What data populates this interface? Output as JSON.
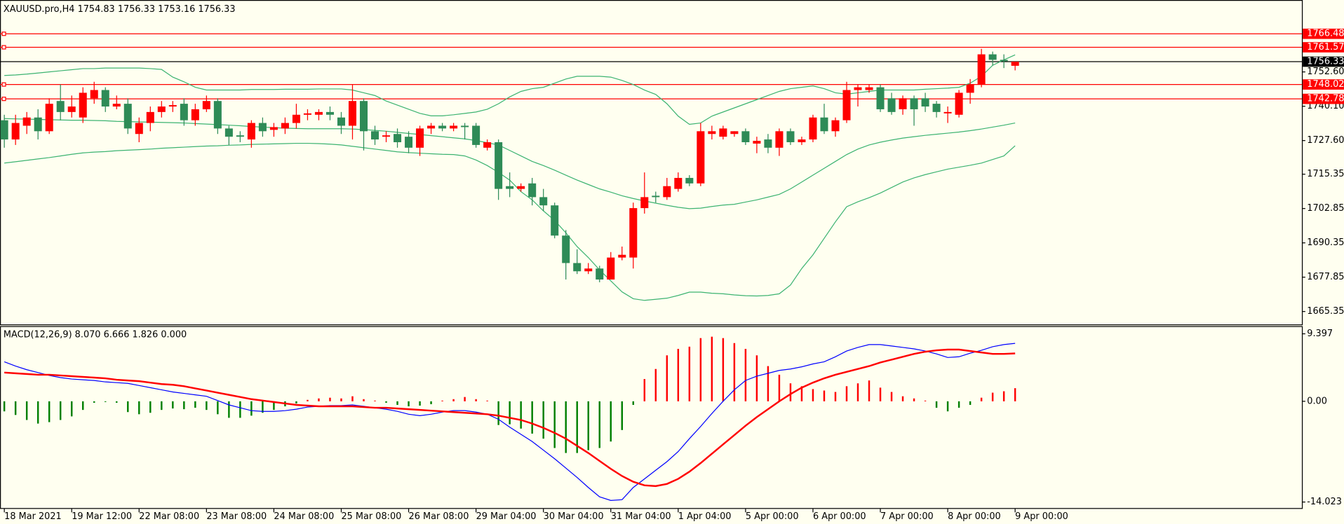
{
  "chart_data": [
    {
      "type": "candlestick",
      "title": "XAUUSD.pro,H4  1754.83 1756.33 1753.16 1756.33",
      "categories": [
        "18 Mar 2021",
        null,
        null,
        null,
        null,
        null,
        "19 Mar 12:00",
        null,
        null,
        null,
        null,
        null,
        "22 Mar 08:00",
        null,
        null,
        null,
        null,
        null,
        "23 Mar 08:00",
        null,
        null,
        null,
        null,
        null,
        "24 Mar 08:00",
        null,
        null,
        null,
        null,
        null,
        "25 Mar 08:00",
        null,
        null,
        null,
        null,
        null,
        "26 Mar 08:00",
        null,
        null,
        null,
        null,
        null,
        "29 Mar 04:00",
        null,
        null,
        null,
        null,
        null,
        "30 Mar 04:00",
        null,
        null,
        null,
        null,
        null,
        "31 Mar 04:00",
        null,
        null,
        null,
        null,
        null,
        "1 Apr 04:00",
        null,
        null,
        null,
        null,
        null,
        "5 Apr 00:00",
        null,
        null,
        null,
        null,
        null,
        "6 Apr 00:00",
        null,
        null,
        null,
        null,
        null,
        "7 Apr 00:00",
        null,
        null,
        null,
        null,
        null,
        "8 Apr 00:00",
        null,
        null,
        null,
        null,
        null,
        "9 Apr 00:00"
      ],
      "open": [
        1735,
        1728,
        1733,
        1736,
        1731,
        1742,
        1738,
        1736,
        1743,
        1746,
        1740,
        1741,
        1730,
        1734,
        1738,
        1740,
        1741,
        1735,
        1739,
        1742,
        1732,
        1729.5,
        1728,
        1734,
        1731.5,
        1732,
        1734,
        1737,
        1737,
        1738,
        1736,
        1733,
        1742,
        1731,
        1729,
        1730,
        1729,
        1725,
        1732,
        1733,
        1732,
        1733,
        1733,
        1725,
        1727,
        1711,
        1710,
        1712,
        1707,
        1704,
        1693,
        1683,
        1680,
        1681,
        1677,
        1685,
        1685,
        1703,
        1707.5,
        1707,
        1710,
        1714,
        1712,
        1730,
        1729,
        1730,
        1731,
        1726.5,
        1728,
        1725,
        1731,
        1727,
        1728,
        1736,
        1731,
        1735,
        1746,
        1746,
        1747,
        1743,
        1739,
        1743,
        1743,
        1741,
        1737.5,
        1737,
        1745,
        1748,
        1759,
        1757,
        1754.83
      ],
      "high": [
        1737,
        1737,
        1738,
        1739,
        1743,
        1748,
        1744,
        1747,
        1749,
        1747,
        1744,
        1743,
        1736,
        1740,
        1742,
        1742,
        1743,
        1741,
        1744,
        1743,
        1733,
        1731,
        1735,
        1736,
        1734,
        1736,
        1741,
        1739,
        1739,
        1740,
        1738,
        1748,
        1743,
        1733,
        1731,
        1732,
        1731,
        1733,
        1734,
        1734,
        1734,
        1734,
        1734,
        1728,
        1728,
        1716,
        1712,
        1714,
        1710,
        1705,
        1695,
        1688,
        1683,
        1682,
        1687,
        1689,
        1705,
        1716,
        1709,
        1714,
        1716,
        1715,
        1734,
        1733,
        1733,
        1731,
        1732,
        1729,
        1730,
        1732,
        1732,
        1729,
        1737,
        1741,
        1736,
        1749,
        1748,
        1748,
        1748,
        1745,
        1744,
        1744,
        1745,
        1742,
        1740,
        1746,
        1750,
        1761,
        1760,
        1759,
        1756.33
      ],
      "low": [
        1725,
        1726,
        1730,
        1728,
        1730,
        1735,
        1736,
        1734,
        1741,
        1738,
        1739,
        1730,
        1727,
        1731,
        1736,
        1738,
        1733,
        1733,
        1738,
        1730,
        1726,
        1727,
        1725,
        1729,
        1729,
        1730,
        1732,
        1735,
        1735,
        1735,
        1730,
        1728,
        1724,
        1726,
        1727,
        1725,
        1723,
        1722,
        1730,
        1731,
        1731,
        1728,
        1725,
        1724,
        1706,
        1707,
        1709,
        1704,
        1702,
        1692,
        1677,
        1679,
        1679,
        1676,
        1677,
        1684,
        1681,
        1701,
        1705,
        1706,
        1709,
        1711,
        1711,
        1728,
        1728,
        1729,
        1726,
        1723,
        1723,
        1722,
        1726,
        1726,
        1727,
        1730,
        1729,
        1734,
        1740,
        1745,
        1738,
        1737,
        1737,
        1733,
        1738,
        1736,
        1734,
        1736,
        1741,
        1747,
        1755,
        1754,
        1753.16
      ],
      "close": [
        1728,
        1734,
        1736,
        1731,
        1741,
        1738,
        1740,
        1745,
        1746,
        1740,
        1741,
        1732,
        1734,
        1738,
        1740,
        1740.5,
        1735,
        1739,
        1742,
        1732,
        1729,
        1729,
        1734,
        1731,
        1732.5,
        1734,
        1737,
        1737.5,
        1738,
        1737,
        1733,
        1742,
        1731,
        1728,
        1729.5,
        1727,
        1725,
        1732,
        1733,
        1732,
        1733,
        1732.5,
        1726,
        1727,
        1710,
        1710,
        1711,
        1707,
        1704,
        1693,
        1683,
        1680,
        1681,
        1677,
        1685,
        1686,
        1703,
        1707,
        1707,
        1711,
        1714,
        1712,
        1731,
        1731,
        1732,
        1731,
        1727,
        1727.5,
        1725,
        1731,
        1727,
        1728,
        1736,
        1731,
        1735,
        1746,
        1747,
        1747,
        1739,
        1738,
        1743,
        1739,
        1740,
        1738,
        1738,
        1745,
        1748,
        1759,
        1757,
        1756.5,
        1756.33
      ],
      "up_color": "#ff0000",
      "down_color": "#2e8b57",
      "series": [
        {
          "color": "#3cb371",
          "values": [
            1751.3,
            1751.5,
            1751.8,
            1752.2,
            1752.6,
            1753,
            1753.4,
            1753.8,
            1753.8,
            1754,
            1754,
            1754,
            1754,
            1753.8,
            1753.5,
            1750.7,
            1749,
            1747,
            1746,
            1746,
            1746,
            1746,
            1746.2,
            1746.2,
            1746.2,
            1746.3,
            1746.3,
            1746.3,
            1746.4,
            1746.4,
            1746.4,
            1746,
            1745,
            1744,
            1742,
            1740.5,
            1739,
            1737.5,
            1736.6,
            1736.6,
            1737,
            1737.5,
            1738,
            1739,
            1741,
            1743.5,
            1745.5,
            1746.5,
            1747,
            1748.5,
            1750,
            1751,
            1751,
            1751,
            1750.7,
            1749.5,
            1748,
            1746,
            1744.4,
            1741,
            1736.5,
            1733.5,
            1734,
            1736.5,
            1738,
            1739.5,
            1741,
            1742.5,
            1744,
            1745.5,
            1746.5,
            1747,
            1747.5,
            1746.5,
            1745,
            1744.5,
            1745,
            1745.5,
            1746,
            1746,
            1746,
            1746,
            1746.3,
            1746.5,
            1746.7,
            1747,
            1748.5,
            1751,
            1755,
            1757,
            1758.8
          ]
        },
        {
          "color": "#3cb371",
          "values": [
            1735.6,
            1735.5,
            1735.4,
            1735.3,
            1735.2,
            1735.1,
            1735,
            1735,
            1734.9,
            1734.8,
            1734.6,
            1734.5,
            1734.4,
            1734.3,
            1734.2,
            1734.1,
            1734,
            1733.8,
            1733.6,
            1733.4,
            1733.2,
            1733,
            1732.7,
            1732.5,
            1732.3,
            1732.1,
            1732,
            1731.9,
            1731.9,
            1731.9,
            1731.9,
            1731.8,
            1731.6,
            1731.3,
            1731,
            1730.6,
            1730.2,
            1729.8,
            1729.4,
            1729,
            1728.6,
            1728.2,
            1727.6,
            1726.8,
            1726,
            1724,
            1722,
            1720,
            1718.5,
            1716.8,
            1715,
            1713.2,
            1711.6,
            1710,
            1708.8,
            1707.5,
            1706.5,
            1705.6,
            1704.8,
            1704,
            1703.3,
            1702.8,
            1703,
            1703.6,
            1704.1,
            1704.4,
            1705.2,
            1706,
            1707,
            1708,
            1710,
            1712.5,
            1715,
            1717.5,
            1720,
            1722.5,
            1724.5,
            1726,
            1727,
            1727.8,
            1728.5,
            1729,
            1729.5,
            1729.9,
            1730.3,
            1730.7,
            1731.2,
            1731.8,
            1732.5,
            1733.2,
            1734
          ]
        },
        {
          "color": "#3cb371",
          "values": [
            1719.4,
            1719.9,
            1720.4,
            1720.9,
            1721.4,
            1722,
            1722.6,
            1723.1,
            1723.4,
            1723.6,
            1723.9,
            1724.1,
            1724.3,
            1724.5,
            1724.8,
            1725,
            1725.2,
            1725.4,
            1725.6,
            1725.7,
            1725.9,
            1726,
            1726.2,
            1726.3,
            1726.4,
            1726.5,
            1726.6,
            1726.6,
            1726.5,
            1726.3,
            1726,
            1725.5,
            1725,
            1724.5,
            1724,
            1723.5,
            1723.2,
            1723,
            1722.8,
            1722.6,
            1722.5,
            1722,
            1720.5,
            1718.5,
            1716,
            1713.2,
            1709,
            1706,
            1702,
            1698.5,
            1694,
            1689,
            1685,
            1680.5,
            1676.5,
            1672.5,
            1670,
            1669.4,
            1669.8,
            1670.2,
            1671.2,
            1672.4,
            1672.4,
            1672,
            1671.8,
            1671.4,
            1671.1,
            1671,
            1671.2,
            1671.8,
            1675,
            1681,
            1686,
            1692,
            1698,
            1703.5,
            1705.3,
            1706.8,
            1708.5,
            1710.5,
            1712.5,
            1714,
            1715.2,
            1716.2,
            1717.2,
            1717.9,
            1718.6,
            1719.4,
            1720.7,
            1722,
            1725.7
          ]
        }
      ],
      "levels": [
        {
          "value": 1766.48,
          "color": "#ff0000"
        },
        {
          "value": 1761.57,
          "color": "#ff0000"
        },
        {
          "value": 1748.02,
          "color": "#ff0000"
        },
        {
          "value": 1742.78,
          "color": "#ff0000"
        }
      ],
      "current": {
        "value": 1756.33,
        "color": "#000000"
      },
      "ylim": [
        1660.66,
        1778.16
      ],
      "yticks": [
        {
          "value": 1752.6,
          "label": "1752.60"
        },
        {
          "value": 1740.1,
          "label": "1740.10"
        },
        {
          "value": 1727.6,
          "label": "1727.60"
        },
        1715.35,
        1702.85,
        1690.35,
        1677.85,
        1665.35
      ]
    },
    {
      "type": "macd",
      "title": "MACD(12,26,9) 8.070 6.666 1.826 0.000",
      "values": [
        -1.4,
        -1.9,
        -2.6,
        -3.1,
        -2.9,
        -2.6,
        -2.1,
        -1.2,
        -0.2,
        -0.1,
        -0.2,
        -1.5,
        -1.8,
        -1.6,
        -1.2,
        -1,
        -1.1,
        -0.9,
        -1.2,
        -1.8,
        -2.3,
        -2.3,
        -2,
        -1.6,
        -1.2,
        -0.7,
        -0.3,
        0.2,
        0.4,
        0.5,
        0.4,
        0.7,
        0.3,
        0.1,
        -0.2,
        -0.5,
        -0.7,
        -0.6,
        -0.4,
        0.1,
        0.3,
        0.6,
        0.3,
        0.1,
        -3.3,
        -3.2,
        -3.8,
        -4.5,
        -5.2,
        -6.5,
        -7.2,
        -7.2,
        -6.8,
        -6.5,
        -5.6,
        -4,
        -0.5,
        3.1,
        4.5,
        6.4,
        7.3,
        7.6,
        8.8,
        9,
        8.8,
        8.1,
        7.3,
        6.4,
        4.9,
        3.7,
        2.5,
        2.1,
        1.7,
        1.5,
        1.3,
        2.1,
        2.5,
        2.9,
        1.9,
        1.3,
        0.7,
        0.4,
        0.1,
        -0.9,
        -1.4,
        -0.9,
        -0.5,
        0.5,
        1.2,
        1.4,
        1.826
      ],
      "positive_color": "#ff0000",
      "negative_color": "#008000",
      "series": [
        {
          "color": "#0000ff",
          "values": [
            5.5,
            4.9,
            4.4,
            4,
            3.6,
            3.3,
            3.1,
            3,
            2.9,
            2.7,
            2.6,
            2.5,
            2.2,
            1.9,
            1.6,
            1.3,
            1.1,
            0.9,
            0.7,
            0.1,
            -0.5,
            -0.9,
            -1.3,
            -1.4,
            -1.4,
            -1.3,
            -1.1,
            -0.8,
            -0.7,
            -0.6,
            -0.6,
            -0.5,
            -0.7,
            -0.9,
            -1.1,
            -1.4,
            -1.8,
            -2,
            -1.8,
            -1.5,
            -1.3,
            -1.3,
            -1.5,
            -1.8,
            -2.5,
            -3.6,
            -4.6,
            -5.6,
            -6.8,
            -8,
            -9.3,
            -10.6,
            -12,
            -13.3,
            -13.8,
            -13.7,
            -12,
            -10.8,
            -9.6,
            -8.4,
            -7,
            -5.2,
            -3.5,
            -1.7,
            0,
            1.6,
            2.9,
            3.5,
            3.9,
            4.3,
            4.5,
            4.8,
            5.2,
            5.5,
            6.2,
            7,
            7.5,
            7.9,
            7.9,
            7.7,
            7.5,
            7.3,
            7,
            6.6,
            6.1,
            6.2,
            6.7,
            7.1,
            7.6,
            7.9,
            8.07
          ]
        },
        {
          "color": "#ff0000",
          "values": [
            4,
            3.9,
            3.8,
            3.7,
            3.7,
            3.6,
            3.5,
            3.4,
            3.3,
            3.2,
            3,
            2.9,
            2.8,
            2.6,
            2.4,
            2.3,
            2.1,
            1.8,
            1.5,
            1.2,
            0.9,
            0.6,
            0.3,
            0.1,
            -0.1,
            -0.3,
            -0.5,
            -0.6,
            -0.7,
            -0.7,
            -0.7,
            -0.7,
            -0.8,
            -0.9,
            -0.9,
            -1,
            -1.1,
            -1.2,
            -1.3,
            -1.4,
            -1.5,
            -1.6,
            -1.7,
            -1.8,
            -2,
            -2.3,
            -2.6,
            -3.1,
            -3.7,
            -4.4,
            -5.2,
            -6.2,
            -7.2,
            -8.3,
            -9.4,
            -10.4,
            -11.2,
            -11.7,
            -11.8,
            -11.5,
            -10.8,
            -9.8,
            -8.6,
            -7.3,
            -6,
            -4.7,
            -3.4,
            -2.2,
            -1.1,
            0,
            1,
            1.9,
            2.6,
            3.2,
            3.7,
            4.1,
            4.5,
            4.9,
            5.4,
            5.8,
            6.2,
            6.6,
            6.9,
            7.1,
            7.2,
            7.2,
            7,
            6.8,
            6.6,
            6.6,
            6.666
          ]
        }
      ],
      "ylim": [
        -14.86,
        10.23
      ],
      "yticks": [
        9.397,
        {
          "value": 0,
          "label": "0.00"
        },
        -14.023
      ]
    }
  ]
}
